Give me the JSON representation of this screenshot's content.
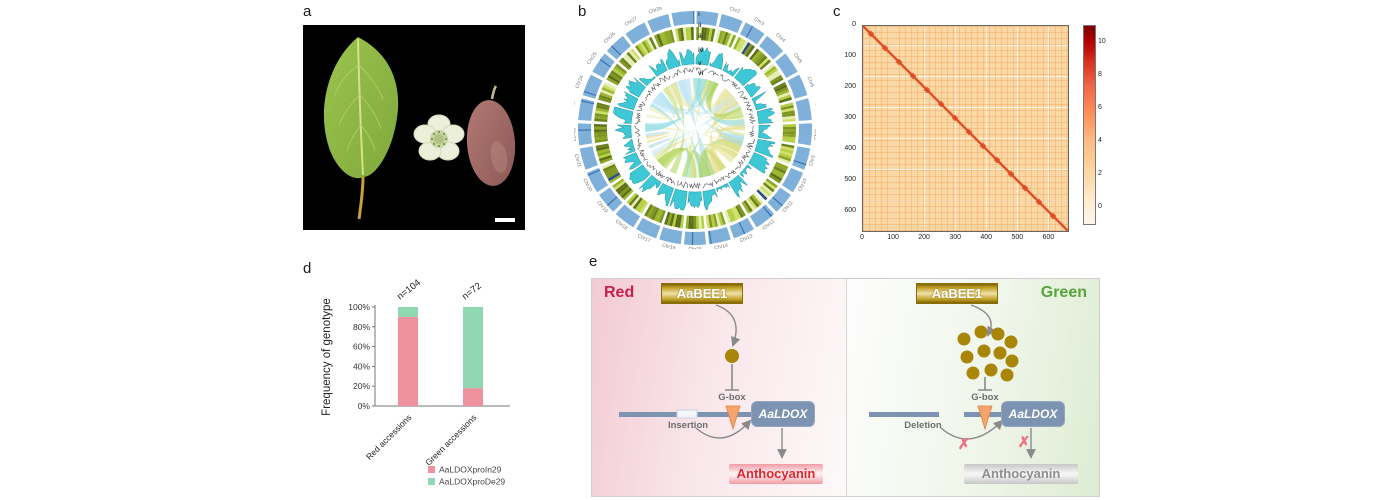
{
  "panel_labels": {
    "a": "a",
    "b": "b",
    "c": "c",
    "d": "d",
    "e": "e"
  },
  "panel_b": {
    "track_labels": [
      "i",
      "ii",
      "iii",
      "iv",
      "v",
      "vi"
    ],
    "chromosomes": [
      "Chr1",
      "Chr2",
      "Chr3",
      "Chr4",
      "Chr5",
      "Chr6",
      "Chr7",
      "Chr8",
      "Chr9",
      "Chr10",
      "Chr11",
      "Chr12",
      "Chr13",
      "Chr14",
      "Chr15",
      "Chr16",
      "Chr17",
      "Chr18",
      "Chr19",
      "Chr20",
      "Chr21",
      "Chr22",
      "Chr23",
      "Chr24",
      "Chr25",
      "Chr26",
      "Chr27",
      "Chr28",
      "Chr29"
    ],
    "colors": {
      "chromosome_ring": "#7fb0da",
      "heatmap_ring_palette": [
        "#5c6e14",
        "#7f941f",
        "#9ab62e",
        "#b5cf45",
        "#cfe06a",
        "#e6edb4",
        "#8aa523",
        "#6d8119"
      ],
      "histogram": "#3ec8d6",
      "line_ring": "#5a5a5a",
      "ribbons": [
        "#a8d9ee",
        "#bfe6f4",
        "#e7dd85",
        "#eee9b0",
        "#aed254",
        "#c8e27e",
        "#7ed8e8"
      ]
    }
  },
  "panel_c": {
    "x_ticks": [
      "0",
      "100",
      "200",
      "300",
      "400",
      "500",
      "600"
    ],
    "y_ticks": [
      "0",
      "100",
      "200",
      "300",
      "400",
      "500",
      "600"
    ],
    "colorbar_ticks": [
      "0",
      "2",
      "4",
      "6",
      "8",
      "10"
    ],
    "axis_max": 660,
    "colors": {
      "background": "#fbd7a4",
      "diagonal": "#e0512a",
      "colormap": "OrRd"
    }
  },
  "chart_data": {
    "type": "bar",
    "subtype": "stacked",
    "ylabel": "Frequency of genotype",
    "categories": [
      "Red accessions",
      "Green accessions"
    ],
    "n_labels": [
      "n=104",
      "n=72"
    ],
    "series": [
      {
        "name": "AaLDOXproIn29",
        "color": "#f0919f",
        "values": [
          90,
          18
        ]
      },
      {
        "name": "AaLDOXproDe29",
        "color": "#90d8b2",
        "values": [
          10,
          82
        ]
      }
    ],
    "y_ticks": [
      "0%",
      "20%",
      "40%",
      "60%",
      "80%",
      "100%"
    ],
    "ylim": [
      0,
      100
    ],
    "legend_position": "bottom"
  },
  "panel_e": {
    "red": {
      "label": "Red",
      "tf": "AaBEE1",
      "gbox": "G-box",
      "variant": "Insertion",
      "gene": "AaLDOX",
      "product": "Anthocyanin"
    },
    "green": {
      "label": "Green",
      "tf": "AaBEE1",
      "gbox": "G-box",
      "variant": "Deletion",
      "gene": "AaLDOX",
      "product": "Anthocyanin",
      "blocked_mark": "✗"
    },
    "colors": {
      "tf_gold": "#a98607",
      "dna_bar": "#7d93b2",
      "gbox_triangle": "#f4a46c",
      "red_accent": "#c51f4e",
      "green_accent": "#57a33b"
    }
  }
}
